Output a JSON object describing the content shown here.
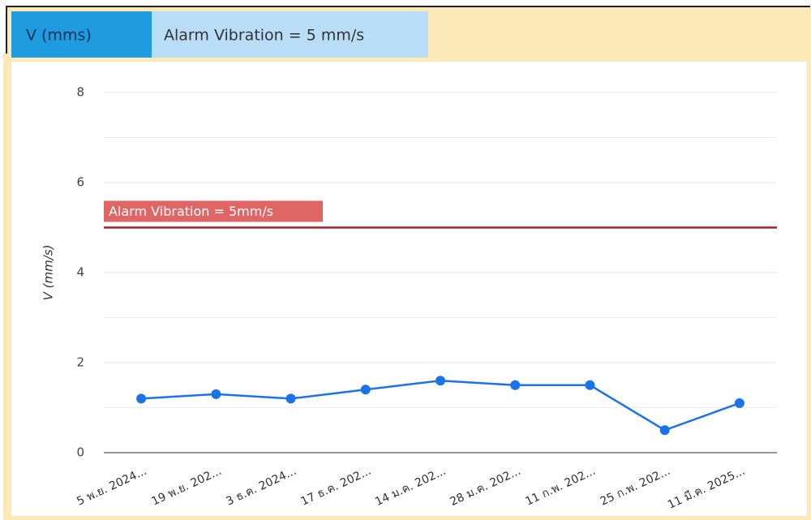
{
  "header": {
    "tabs": [
      "V (mms)",
      "Alarm Vibration = 5 mm/s"
    ]
  },
  "chart_data": {
    "type": "line",
    "categories": [
      "5 พ.ย. 2024...",
      "19 พ.ย. 202...",
      "3 ธ.ค. 2024...",
      "17 ธ.ค. 202...",
      "14 ม.ค. 202...",
      "28 ม.ค. 202...",
      "11 ก.พ. 202...",
      "25 ก.พ. 202...",
      "11 มี.ค. 2025..."
    ],
    "series": [
      {
        "name": "V (mms)",
        "color": "#1a73e8",
        "values": [
          1.2,
          1.3,
          1.2,
          1.4,
          1.6,
          1.5,
          1.5,
          0.5,
          1.1
        ]
      }
    ],
    "y_label": "V (mm/s)",
    "ylim": [
      0,
      8
    ],
    "yticks": [
      0,
      2,
      4,
      6,
      8
    ],
    "minor_yticks": [
      1,
      3,
      5,
      7
    ],
    "grid": true,
    "annotations": [
      {
        "label": "Alarm Vibration = 5mm/s",
        "value": 5,
        "color": "#a3212a"
      }
    ]
  }
}
